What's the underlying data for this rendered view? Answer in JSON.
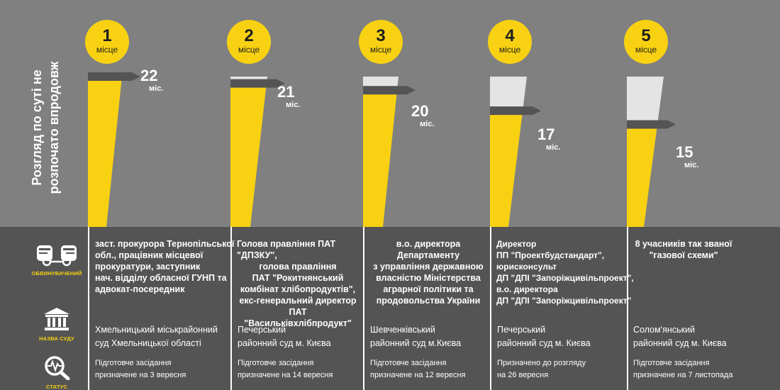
{
  "title": [
    "Розгляд по суті не",
    "розпочато впродовж"
  ],
  "rank_label": "місце",
  "unit": "міс.",
  "side_labels": {
    "accused": "ОБВИНУВАЧЕНИЙ",
    "court": "НАЗВА СУДУ",
    "status": "СТАТУС"
  },
  "icons": {
    "accused": "handcuffed-fists-icon",
    "court": "courthouse-icon",
    "status": "magnifier-pulse-icon"
  },
  "colors": {
    "background": "#808080",
    "bottom_panel": "#545454",
    "accent_yellow": "#f8d212",
    "bar_remainder": "#e4e4e4",
    "marker": "#545454",
    "text": "#ffffff"
  },
  "chart_data": {
    "type": "bar",
    "title": "Розгляд по суті не розпочато впродовж",
    "categories": [
      "1",
      "2",
      "3",
      "4",
      "5"
    ],
    "values": [
      22,
      21,
      20,
      17,
      15
    ],
    "unit": "міс.",
    "ylim": [
      0,
      22
    ],
    "grid": false,
    "legend": "none"
  },
  "columns": [
    {
      "rank": "1",
      "value": "22",
      "accused": [
        "заст. прокурора Тернопільської",
        "обл., працівник місцевої",
        "прокуратури, заступник",
        "нач. відділу обласної ГУНП та",
        "адвокат-посередник"
      ],
      "court": [
        "Хмельницький міськрайонний",
        "суд Хмельницької області"
      ],
      "status": [
        "Підготовче засідання",
        "призначене на 3 вересня"
      ]
    },
    {
      "rank": "2",
      "value": "21",
      "accused": [
        "Голова правління ПАТ \"ДПЗКУ\",",
        "голова правління",
        "ПАТ \"Рокитнянський",
        "комбінат хлібопродуктів\",",
        "екс-генеральний директор",
        "ПАТ \"Васильківхлібпродукт\""
      ],
      "court": [
        "Печерський",
        "районний суд м. Києва"
      ],
      "status": [
        "Підготовче засідання",
        "призначене на 14 вересня"
      ]
    },
    {
      "rank": "3",
      "value": "20",
      "accused": [
        "в.о. директора Департаменту",
        "з управління державною",
        "власністю Міністерства",
        "аграрної політики та",
        "продовольства України"
      ],
      "court": [
        "Шевченківський",
        "районний суд м.Києва"
      ],
      "status": [
        "Підготовче засідання",
        "призначене на 12 вересня"
      ]
    },
    {
      "rank": "4",
      "value": "17",
      "accused": [
        "Директор",
        "ПП \"Проектбудстандарт\",",
        "юрисконсульт",
        "ДП \"ДПІ \"Запоріжцивільпроект\",",
        "в.о. директора",
        "ДП \"ДПІ \"Запоріжцивільпроект\""
      ],
      "court": [
        "Печерський",
        "районний суд м. Києва"
      ],
      "status": [
        "Призначено до розгляду",
        "на 26 вересня"
      ]
    },
    {
      "rank": "5",
      "value": "15",
      "accused": [
        "8 учасників так званої",
        "\"газової схеми\""
      ],
      "court": [
        "Солом'янський",
        "районний суд м. Києва"
      ],
      "status": [
        "Підготовче засідання",
        "призначене на 7 листопада"
      ]
    }
  ]
}
